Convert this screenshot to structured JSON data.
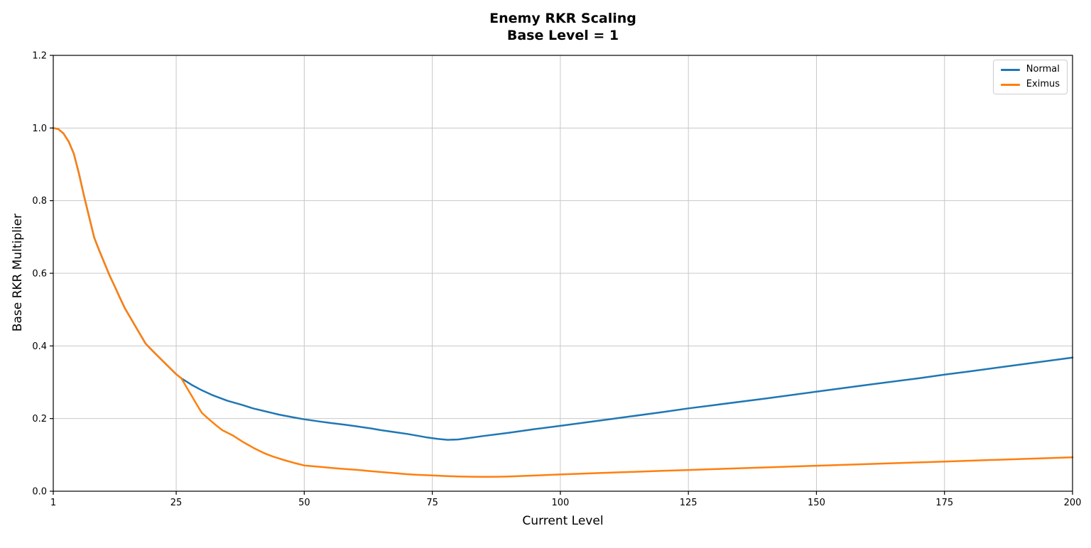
{
  "chart_data": {
    "type": "line",
    "title": "Enemy RKR Scaling\nBase Level = 1",
    "title_line1": "Enemy RKR Scaling",
    "title_line2": "Base Level = 1",
    "xlabel": "Current Level",
    "ylabel": "Base RKR Multiplier",
    "xlim": [
      1,
      200
    ],
    "ylim": [
      0,
      1.2
    ],
    "x_ticks": [
      1,
      25,
      50,
      75,
      100,
      125,
      150,
      175,
      200
    ],
    "x_tick_labels": [
      "1",
      "25",
      "50",
      "75",
      "100",
      "125",
      "150",
      "175",
      "200"
    ],
    "y_ticks": [
      0,
      0.2,
      0.4,
      0.6,
      0.8,
      1.0,
      1.2
    ],
    "y_tick_labels": [
      "0.0",
      "0.2",
      "0.4",
      "0.6",
      "0.8",
      "1.0",
      "1.2"
    ],
    "grid": true,
    "legend_position": "upper right",
    "colors": {
      "normal": "#1f77b4",
      "eximus": "#ff7f0e",
      "grid": "#c8c8c8",
      "spine": "#000000",
      "text": "#000000"
    },
    "series": [
      {
        "name": "Normal",
        "color": "#1f77b4",
        "points": [
          [
            1,
            1.0
          ],
          [
            2,
            0.997
          ],
          [
            3,
            0.985
          ],
          [
            4,
            0.963
          ],
          [
            5,
            0.93
          ],
          [
            6,
            0.875
          ],
          [
            7,
            0.813
          ],
          [
            8,
            0.755
          ],
          [
            9,
            0.698
          ],
          [
            10,
            0.662
          ],
          [
            11,
            0.628
          ],
          [
            12,
            0.594
          ],
          [
            13,
            0.564
          ],
          [
            14,
            0.533
          ],
          [
            15,
            0.503
          ],
          [
            16,
            0.479
          ],
          [
            17,
            0.455
          ],
          [
            18,
            0.431
          ],
          [
            19,
            0.407
          ],
          [
            20,
            0.392
          ],
          [
            21,
            0.378
          ],
          [
            22,
            0.364
          ],
          [
            23,
            0.35
          ],
          [
            24,
            0.336
          ],
          [
            25,
            0.322
          ],
          [
            26,
            0.311
          ],
          [
            28,
            0.293
          ],
          [
            30,
            0.278
          ],
          [
            32,
            0.265
          ],
          [
            35,
            0.249
          ],
          [
            38,
            0.237
          ],
          [
            40,
            0.228
          ],
          [
            43,
            0.218
          ],
          [
            45,
            0.211
          ],
          [
            48,
            0.203
          ],
          [
            50,
            0.198
          ],
          [
            53,
            0.192
          ],
          [
            55,
            0.188
          ],
          [
            58,
            0.183
          ],
          [
            60,
            0.179
          ],
          [
            63,
            0.173
          ],
          [
            65,
            0.168
          ],
          [
            68,
            0.162
          ],
          [
            70,
            0.158
          ],
          [
            72,
            0.153
          ],
          [
            74,
            0.148
          ],
          [
            76,
            0.144
          ],
          [
            78,
            0.1415
          ],
          [
            80,
            0.1425
          ],
          [
            82,
            0.146
          ],
          [
            85,
            0.152
          ],
          [
            90,
            0.161
          ],
          [
            95,
            0.171
          ],
          [
            100,
            0.18
          ],
          [
            110,
            0.199
          ],
          [
            120,
            0.218
          ],
          [
            125,
            0.228
          ],
          [
            130,
            0.237
          ],
          [
            140,
            0.255
          ],
          [
            150,
            0.274
          ],
          [
            160,
            0.293
          ],
          [
            170,
            0.311
          ],
          [
            175,
            0.321
          ],
          [
            180,
            0.33
          ],
          [
            190,
            0.349
          ],
          [
            200,
            0.368
          ]
        ]
      },
      {
        "name": "Eximus",
        "color": "#ff7f0e",
        "points": [
          [
            1,
            1.0
          ],
          [
            2,
            0.997
          ],
          [
            3,
            0.985
          ],
          [
            4,
            0.963
          ],
          [
            5,
            0.93
          ],
          [
            6,
            0.875
          ],
          [
            7,
            0.813
          ],
          [
            8,
            0.755
          ],
          [
            9,
            0.698
          ],
          [
            10,
            0.662
          ],
          [
            11,
            0.628
          ],
          [
            12,
            0.594
          ],
          [
            13,
            0.564
          ],
          [
            14,
            0.533
          ],
          [
            15,
            0.503
          ],
          [
            16,
            0.479
          ],
          [
            17,
            0.455
          ],
          [
            18,
            0.431
          ],
          [
            19,
            0.407
          ],
          [
            20,
            0.392
          ],
          [
            21,
            0.378
          ],
          [
            22,
            0.364
          ],
          [
            23,
            0.35
          ],
          [
            24,
            0.336
          ],
          [
            25,
            0.322
          ],
          [
            26,
            0.311
          ],
          [
            27,
            0.287
          ],
          [
            28,
            0.263
          ],
          [
            29,
            0.239
          ],
          [
            30,
            0.216
          ],
          [
            31,
            0.203
          ],
          [
            32,
            0.191
          ],
          [
            33,
            0.179
          ],
          [
            34,
            0.168
          ],
          [
            35,
            0.161
          ],
          [
            36,
            0.154
          ],
          [
            37,
            0.145
          ],
          [
            38,
            0.136
          ],
          [
            39,
            0.128
          ],
          [
            40,
            0.12
          ],
          [
            41,
            0.113
          ],
          [
            42,
            0.106
          ],
          [
            43,
            0.1
          ],
          [
            44,
            0.095
          ],
          [
            45,
            0.0905
          ],
          [
            46,
            0.086
          ],
          [
            47,
            0.082
          ],
          [
            48,
            0.078
          ],
          [
            49,
            0.0745
          ],
          [
            50,
            0.071
          ],
          [
            52,
            0.0684
          ],
          [
            54,
            0.0658
          ],
          [
            55,
            0.0645
          ],
          [
            56,
            0.0633
          ],
          [
            58,
            0.061
          ],
          [
            60,
            0.0592
          ],
          [
            62,
            0.0565
          ],
          [
            65,
            0.0527
          ],
          [
            68,
            0.0495
          ],
          [
            70,
            0.047
          ],
          [
            72,
            0.0452
          ],
          [
            75,
            0.0433
          ],
          [
            78,
            0.0414
          ],
          [
            80,
            0.0406
          ],
          [
            83,
            0.0398
          ],
          [
            85,
            0.0396
          ],
          [
            88,
            0.0398
          ],
          [
            90,
            0.0405
          ],
          [
            95,
            0.0432
          ],
          [
            100,
            0.0462
          ],
          [
            110,
            0.0512
          ],
          [
            120,
            0.056
          ],
          [
            125,
            0.0585
          ],
          [
            130,
            0.0608
          ],
          [
            140,
            0.0655
          ],
          [
            150,
            0.0702
          ],
          [
            160,
            0.0748
          ],
          [
            170,
            0.0794
          ],
          [
            175,
            0.0817
          ],
          [
            180,
            0.084
          ],
          [
            190,
            0.0887
          ],
          [
            200,
            0.0935
          ]
        ]
      }
    ]
  }
}
